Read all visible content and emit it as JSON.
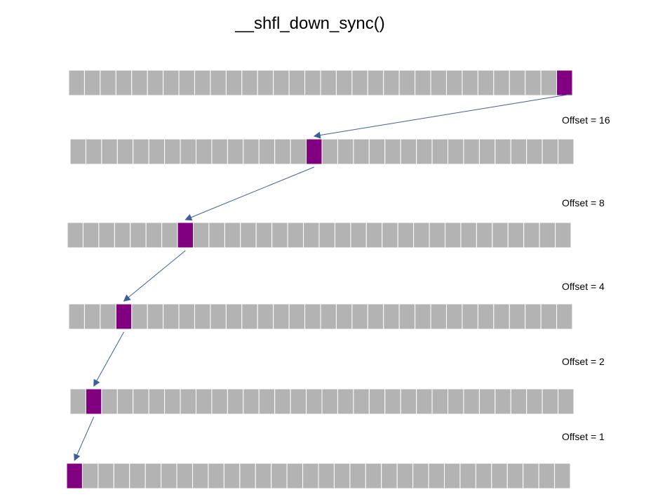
{
  "title": "__shfl_down_sync()",
  "lanes_per_row": 32,
  "colors": {
    "cell": "#b3b3b3",
    "highlight": "#800080",
    "border": "#ffffff",
    "arrow": "#3b5f9a"
  },
  "rows": [
    {
      "highlight_lane": 31
    },
    {
      "highlight_lane": 15
    },
    {
      "highlight_lane": 7
    },
    {
      "highlight_lane": 3
    },
    {
      "highlight_lane": 1
    },
    {
      "highlight_lane": 0
    }
  ],
  "offsets": [
    {
      "label": "Offset = 16",
      "value": 16
    },
    {
      "label": "Offset = 8",
      "value": 8
    },
    {
      "label": "Offset = 4",
      "value": 4
    },
    {
      "label": "Offset = 2",
      "value": 2
    },
    {
      "label": "Offset = 1",
      "value": 1
    }
  ]
}
